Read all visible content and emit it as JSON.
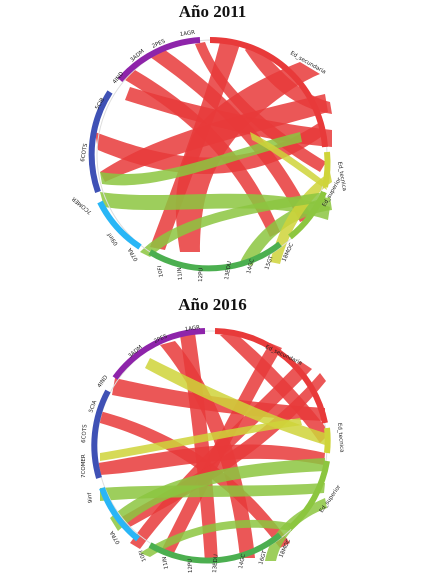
{
  "panels": [
    {
      "title": "Año 2011",
      "segments": [
        {
          "label": "Ed_secundaria",
          "color": "#e83a3a"
        },
        {
          "label": "Ed_tecnica",
          "color": "#cfd43a"
        },
        {
          "label": "Ed_superior",
          "color": "#8cc63f"
        },
        {
          "label": "18MOC",
          "color": "#7fbf7f"
        },
        {
          "label": "15GT",
          "color": "#5aa85a"
        },
        {
          "label": "14GC",
          "color": "#6ab04c"
        },
        {
          "label": "13EDU",
          "color": "#4caf50"
        },
        {
          "label": "12PU",
          "color": "#3fa34d"
        },
        {
          "label": "11IN",
          "color": "#43a047"
        },
        {
          "label": "10FI",
          "color": "#2e7d32"
        },
        {
          "label": "07RA",
          "color": "#26a69a"
        },
        {
          "label": "09inf",
          "color": "#26c6da"
        },
        {
          "label": "7COMER",
          "color": "#29b6f6"
        },
        {
          "label": "6COTS",
          "color": "#3f51b5"
        },
        {
          "label": "5CIB",
          "color": "#5c6bc0"
        },
        {
          "label": "4IND",
          "color": "#3949ab"
        },
        {
          "label": "3ADM",
          "color": "#8e24aa"
        },
        {
          "label": "2PES",
          "color": "#7b1fa2"
        },
        {
          "label": "1AGR",
          "color": "#ab47bc"
        }
      ]
    },
    {
      "title": "Año 2016",
      "segments": [
        {
          "label": "Ed_secundaria",
          "color": "#e83a3a"
        },
        {
          "label": "Ed_tecnica",
          "color": "#cfd43a"
        },
        {
          "label": "Ed_superior",
          "color": "#8cc63f"
        },
        {
          "label": "18MOC",
          "color": "#7fbf7f"
        },
        {
          "label": "16GT",
          "color": "#5aa85a"
        },
        {
          "label": "14GC",
          "color": "#6ab04c"
        },
        {
          "label": "13EDU",
          "color": "#4caf50"
        },
        {
          "label": "12PU",
          "color": "#3fa34d"
        },
        {
          "label": "11IN",
          "color": "#43a047"
        },
        {
          "label": "10FI",
          "color": "#2e7d32"
        },
        {
          "label": "07RA",
          "color": "#26c6da"
        },
        {
          "label": "9inf",
          "color": "#29b6f6"
        },
        {
          "label": "7COMER",
          "color": "#3f51b5"
        },
        {
          "label": "6COTS",
          "color": "#5c6bc0"
        },
        {
          "label": "5CIA",
          "color": "#3949ab"
        },
        {
          "label": "4IND",
          "color": "#3949ab"
        },
        {
          "label": "3ADM",
          "color": "#8e24aa"
        },
        {
          "label": "2PES",
          "color": "#7b1fa2"
        },
        {
          "label": "1AGR",
          "color": "#ab47bc"
        }
      ]
    }
  ]
}
